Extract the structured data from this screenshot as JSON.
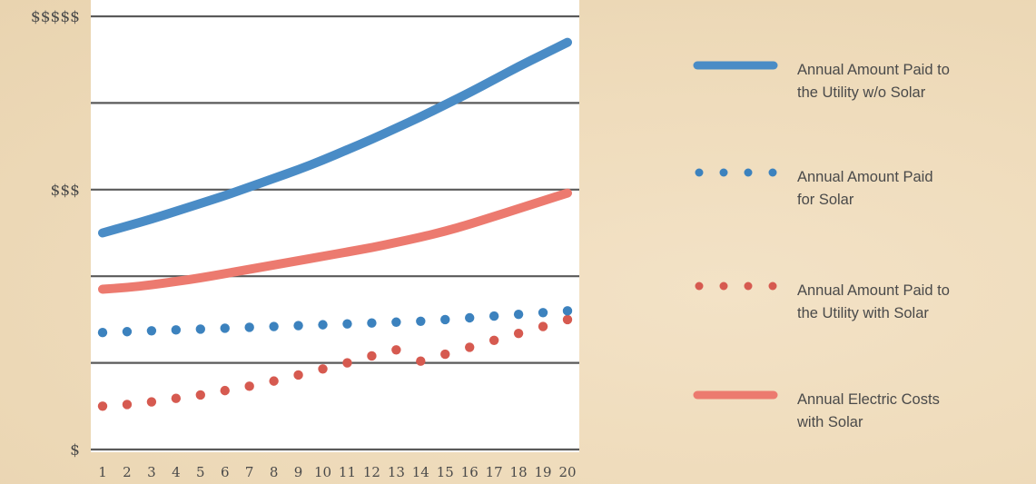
{
  "chart_data": {
    "type": "line",
    "x": [
      1,
      2,
      3,
      4,
      5,
      6,
      7,
      8,
      9,
      10,
      11,
      12,
      13,
      14,
      15,
      16,
      17,
      18,
      19,
      20
    ],
    "x_tick_labels": [
      "1",
      "2",
      "3",
      "4",
      "5",
      "6",
      "7",
      "8",
      "9",
      "10",
      "11",
      "12",
      "13",
      "14",
      "15",
      "16",
      "17",
      "18",
      "19",
      "20"
    ],
    "y_tick_labels": [
      {
        "value": 0,
        "label": "$"
      },
      {
        "value": 3,
        "label": "$$$"
      },
      {
        "value": 5,
        "label": "$$$$$"
      }
    ],
    "ylim": [
      0,
      5
    ],
    "gridlines": [
      0,
      1,
      2,
      3,
      4,
      5
    ],
    "grid": true,
    "legend_position": "right",
    "series": [
      {
        "name": "Annual Amount Paid to the Utility w/o Solar",
        "legend_lines": [
          "Annual Amount Paid to",
          "the Utility w/o Solar"
        ],
        "style": "solid",
        "color": "#4a8cc6",
        "values": [
          2.5,
          2.58,
          2.66,
          2.75,
          2.84,
          2.93,
          3.03,
          3.13,
          3.23,
          3.34,
          3.46,
          3.58,
          3.71,
          3.84,
          3.98,
          4.12,
          4.27,
          4.42,
          4.56,
          4.7
        ]
      },
      {
        "name": "Annual Amount Paid for Solar",
        "legend_lines": [
          "Annual Amount Paid",
          "for Solar"
        ],
        "style": "dotted",
        "color": "#3c82be",
        "values": [
          1.35,
          1.36,
          1.37,
          1.38,
          1.39,
          1.4,
          1.41,
          1.42,
          1.43,
          1.44,
          1.45,
          1.46,
          1.47,
          1.48,
          1.5,
          1.52,
          1.54,
          1.56,
          1.58,
          1.6
        ]
      },
      {
        "name": "Annual Amount Paid to the Utility with Solar",
        "legend_lines": [
          "Annual Amount Paid to",
          "the Utility with Solar"
        ],
        "style": "dotted",
        "color": "#d65a50",
        "values": [
          0.5,
          0.52,
          0.55,
          0.59,
          0.63,
          0.68,
          0.73,
          0.79,
          0.86,
          0.93,
          1.0,
          1.08,
          1.15,
          1.02,
          1.1,
          1.18,
          1.26,
          1.34,
          1.42,
          1.5
        ]
      },
      {
        "name": "Annual Electric Costs with Solar",
        "legend_lines": [
          "Annual Electric Costs",
          "with Solar"
        ],
        "style": "solid",
        "color": "#ec7a6f",
        "values": [
          1.85,
          1.87,
          1.9,
          1.94,
          1.98,
          2.03,
          2.08,
          2.13,
          2.18,
          2.23,
          2.28,
          2.33,
          2.39,
          2.45,
          2.52,
          2.6,
          2.69,
          2.78,
          2.87,
          2.96
        ]
      }
    ]
  }
}
